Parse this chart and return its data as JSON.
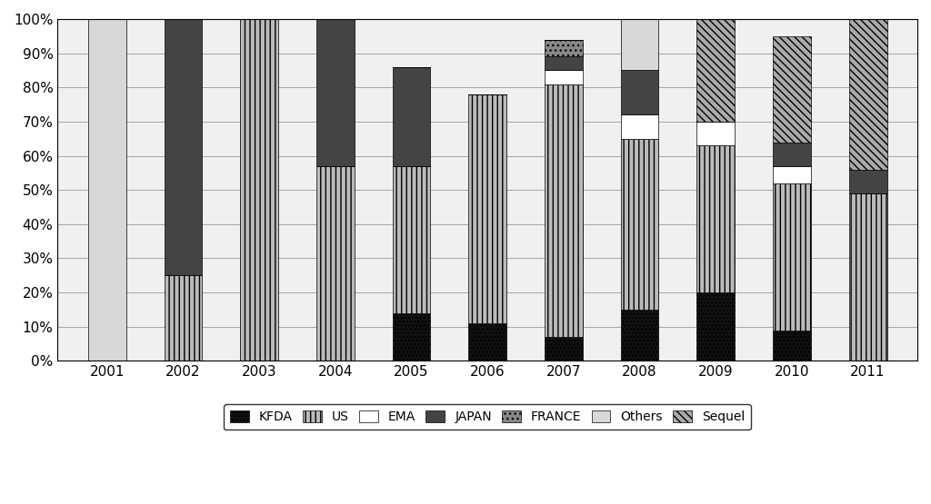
{
  "years": [
    "2001",
    "2002",
    "2003",
    "2004",
    "2005",
    "2006",
    "2007",
    "2008",
    "2009",
    "2010",
    "2011"
  ],
  "categories": [
    "KFDA",
    "US",
    "EMA",
    "JAPAN",
    "FRANCE",
    "Others",
    "Sequel"
  ],
  "values": {
    "KFDA": [
      0,
      0,
      0,
      0,
      14,
      11,
      7,
      15,
      20,
      9,
      0
    ],
    "US": [
      0,
      25,
      100,
      57,
      43,
      67,
      74,
      50,
      43,
      43,
      49
    ],
    "EMA": [
      0,
      0,
      0,
      0,
      0,
      0,
      4,
      7,
      7,
      5,
      0
    ],
    "JAPAN": [
      0,
      75,
      0,
      43,
      29,
      0,
      4,
      13,
      0,
      7,
      7
    ],
    "FRANCE": [
      0,
      0,
      0,
      0,
      0,
      0,
      5,
      0,
      0,
      0,
      0
    ],
    "Others": [
      100,
      0,
      0,
      0,
      0,
      0,
      0,
      15,
      0,
      0,
      0
    ],
    "Sequel": [
      0,
      0,
      0,
      0,
      0,
      0,
      0,
      0,
      30,
      31,
      44
    ]
  },
  "cat_styles": {
    "KFDA": {
      "color": "#111111",
      "hatch": "...."
    },
    "US": {
      "color": "#bbbbbb",
      "hatch": "|||"
    },
    "EMA": {
      "color": "#ffffff",
      "hatch": ""
    },
    "JAPAN": {
      "color": "#444444",
      "hatch": ""
    },
    "FRANCE": {
      "color": "#888888",
      "hatch": "..."
    },
    "Others": {
      "color": "#d8d8d8",
      "hatch": ""
    },
    "Sequel": {
      "color": "#aaaaaa",
      "hatch": "\\\\\\\\"
    }
  },
  "legend_labels": [
    "KFDA",
    "US",
    "EMA",
    "JAPAN",
    "FRANCE",
    "Others",
    "Sequel"
  ],
  "bg_color": "#f0f0f0",
  "ylim": [
    0,
    100
  ],
  "yticks": [
    0,
    10,
    20,
    30,
    40,
    50,
    60,
    70,
    80,
    90,
    100
  ],
  "yticklabels": [
    "0%",
    "10%",
    "20%",
    "30%",
    "40%",
    "50%",
    "60%",
    "70%",
    "80%",
    "90%",
    "100%"
  ]
}
